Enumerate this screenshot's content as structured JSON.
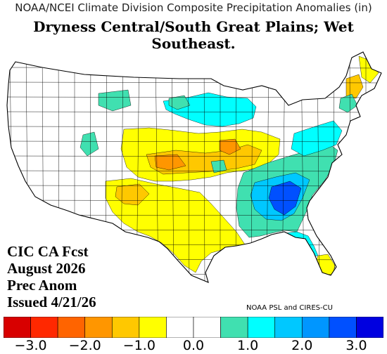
{
  "header": {
    "source_title": "NOAA/NCEI Climate Division Composite Precipitation Anomalies (in)",
    "headline": "Dryness Central/South Great Plains; Wet Southeast."
  },
  "forecast_label": {
    "lines": [
      "CIC CA Fcst",
      "August 2026",
      "Prec Anom",
      "Issued 4/21/26"
    ]
  },
  "credit": "NOAA PSL and CIRES-CU",
  "colorbar": {
    "colors": [
      "#d80000",
      "#ff2800",
      "#ff6400",
      "#ff9600",
      "#ffc800",
      "#ffff00",
      "#ffffff",
      "#ffffff",
      "#40e0b0",
      "#00ffff",
      "#00c8ff",
      "#0096ff",
      "#0050ff",
      "#0000e0"
    ],
    "tick_labels": [
      "−3.0",
      "−2.0",
      "−1.0",
      "0.0",
      "1.0",
      "2.0",
      "3.0"
    ]
  },
  "map": {
    "base_color": "#ffffff",
    "border_color": "#000000",
    "regions": [
      {
        "name": "northern-high-plains-wet",
        "color": "#40e0b0"
      },
      {
        "name": "upper-midwest-wet",
        "color": "#00ffff"
      },
      {
        "name": "central-plains-dry",
        "color": "#ffff00"
      },
      {
        "name": "kansas-missouri-dry",
        "color": "#ffc800"
      },
      {
        "name": "kansas-core-dry",
        "color": "#ff9600"
      },
      {
        "name": "illinois-dry",
        "color": "#ff9600"
      },
      {
        "name": "southern-plains-dry",
        "color": "#ffff00"
      },
      {
        "name": "new-mexico-dry",
        "color": "#ffc800"
      },
      {
        "name": "southeast-wet",
        "color": "#40e0b0"
      },
      {
        "name": "southeast-core-wet",
        "color": "#00c8ff"
      },
      {
        "name": "southeast-peak-wet",
        "color": "#0050ff"
      },
      {
        "name": "mid-atlantic-wet",
        "color": "#00ffff"
      },
      {
        "name": "florida-wet",
        "color": "#00ffff"
      },
      {
        "name": "south-florida-dry",
        "color": "#ffff00"
      },
      {
        "name": "new-england-dry",
        "color": "#ffc800"
      },
      {
        "name": "maine-dry",
        "color": "#ffff00"
      },
      {
        "name": "montana-wet",
        "color": "#40e0b0"
      },
      {
        "name": "idaho-wet",
        "color": "#40e0b0"
      },
      {
        "name": "nevada-wet",
        "color": "#40e0b0"
      },
      {
        "name": "upstate-new-york-wet",
        "color": "#40e0b0"
      }
    ]
  }
}
